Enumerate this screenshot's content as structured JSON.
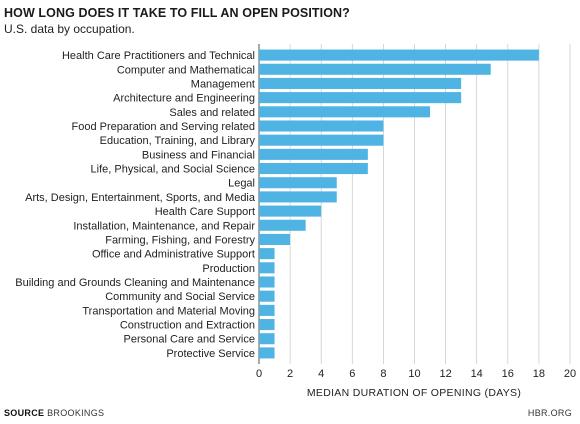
{
  "header": {
    "title": "HOW LONG DOES IT TAKE TO FILL AN OPEN POSITION?",
    "subtitle": "U.S. data by occupation."
  },
  "footer": {
    "source_label": "SOURCE",
    "source_value": "BROOKINGS",
    "brand": "HBR.ORG"
  },
  "colors": {
    "bar": "#4fb3e3",
    "grid": "#cccccc",
    "axis": "#555555"
  },
  "chart_data": {
    "type": "bar",
    "orientation": "horizontal",
    "xlabel": "MEDIAN DURATION OF OPENING (DAYS)",
    "xlim": [
      0,
      20
    ],
    "xticks": [
      0,
      2,
      4,
      6,
      8,
      10,
      12,
      14,
      16,
      18,
      20
    ],
    "grid": true,
    "categories": [
      "Health Care Practitioners and Technical",
      "Computer and Mathematical",
      "Management",
      "Architecture and Engineering",
      "Sales and related",
      "Food Preparation and Serving related",
      "Education, Training, and Library",
      "Business and Financial",
      "Life, Physical, and Social Science",
      "Legal",
      "Arts, Design, Entertainment, Sports, and Media",
      "Health Care Support",
      "Installation, Maintenance, and Repair",
      "Farming, Fishing, and Forestry",
      "Office and Administrative Support",
      "Production",
      "Building and Grounds Cleaning and Maintenance",
      "Community and Social Service",
      "Transportation and Material Moving",
      "Construction and Extraction",
      "Personal Care and Service",
      "Protective Service"
    ],
    "values": [
      18,
      14.9,
      13,
      13,
      11,
      8,
      8,
      7,
      7,
      5,
      5,
      4,
      3,
      2,
      1,
      1,
      1,
      1,
      1,
      1,
      1,
      1
    ]
  }
}
